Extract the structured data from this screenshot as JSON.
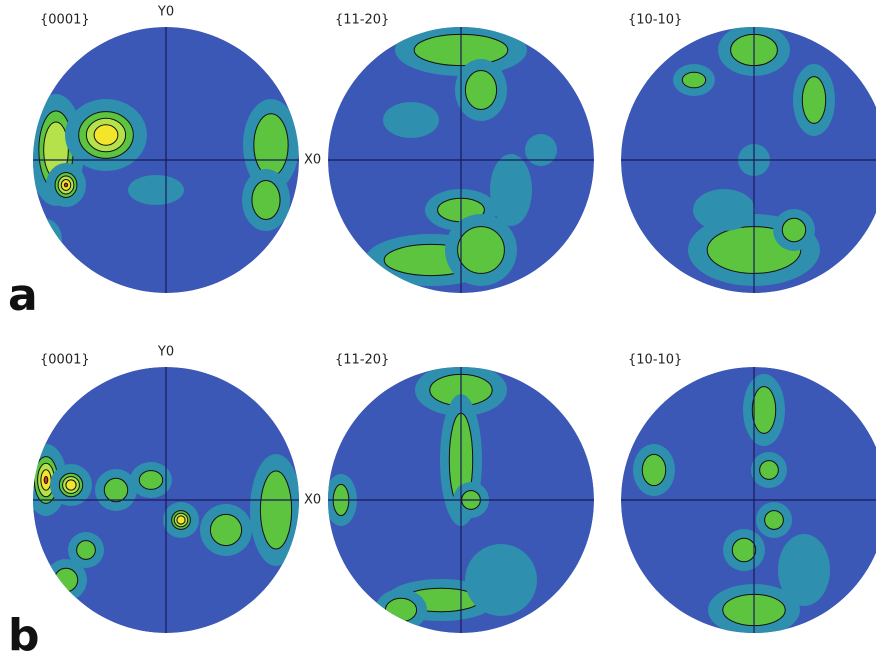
{
  "figure": {
    "rows": [
      {
        "label": "a",
        "panels": [
          {
            "title": "{0001}",
            "y_axis": "Y0",
            "x_axis": "X0"
          },
          {
            "title": "{11-20}"
          },
          {
            "title": "{10-10}"
          }
        ]
      },
      {
        "label": "b",
        "panels": [
          {
            "title": "{0001}",
            "y_axis": "Y0",
            "x_axis": "X0"
          },
          {
            "title": "{11-20}"
          },
          {
            "title": "{10-10}"
          }
        ]
      }
    ]
  }
}
